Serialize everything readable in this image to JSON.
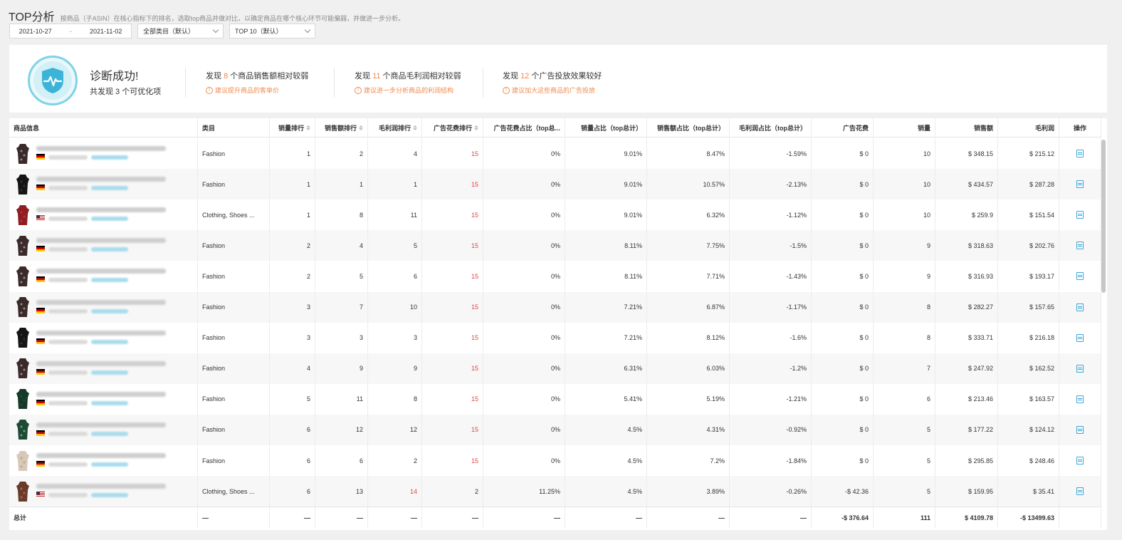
{
  "header": {
    "title": "TOP分析",
    "subtitle": "按商品（子ASIN）在核心指标下的排名，选取top商品并做对比，以确定商品在哪个核心环节可能偏弱，并做进一步分析。"
  },
  "filters": {
    "date_start": "2021-10-27",
    "date_sep": "-",
    "date_end": "2021-11-02",
    "category_select": "全部类目（默认）",
    "top_select": "TOP 10（默认）"
  },
  "diagnosis": {
    "status": "诊断成功!",
    "summary": "共发现 3 个可优化项",
    "findings": [
      {
        "pre": "发现",
        "num": "8",
        "post": "个商品销售额相对较弱",
        "tip": "建议提升商品的客单价"
      },
      {
        "pre": "发现",
        "num": "11",
        "post": "个商品毛利润相对较弱",
        "tip": "建议进一步分析商品的利润结构"
      },
      {
        "pre": "发现",
        "num": "12",
        "post": "个广告投放效果较好",
        "tip": "建议加大这些商品的广告投放"
      }
    ],
    "icons": {
      "shield": "shield-heartbeat-icon",
      "tip": "info-circle-icon"
    },
    "accent_color": "#f08a4b"
  },
  "table": {
    "columns": [
      "商品信息",
      "类目",
      "销量排行",
      "销售额排行",
      "毛利润排行",
      "广告花费排行",
      "广告花费占比（top总...",
      "销量占比（top总计）",
      "销售额占比（top总计）",
      "毛利润占比（top总计）",
      "广告花费",
      "销量",
      "销售额",
      "毛利润",
      "操作"
    ],
    "rows": [
      {
        "flag": "de",
        "img": "pattern",
        "category": "Fashion",
        "qty_rank": "1",
        "sales_rank": "2",
        "profit_rank": "4",
        "ad_rank": "15",
        "ad_share": "0%",
        "qty_share": "9.01%",
        "sales_share": "8.47%",
        "profit_share": "-1.59%",
        "ad_cost": "$ 0",
        "qty": "10",
        "sales": "$ 348.15",
        "profit": "$ 215.12"
      },
      {
        "flag": "de",
        "img": "black",
        "category": "Fashion",
        "qty_rank": "1",
        "sales_rank": "1",
        "profit_rank": "1",
        "ad_rank": "15",
        "ad_share": "0%",
        "qty_share": "9.01%",
        "sales_share": "10.57%",
        "profit_share": "-2.13%",
        "ad_cost": "$ 0",
        "qty": "10",
        "sales": "$ 434.57",
        "profit": "$ 287.28"
      },
      {
        "flag": "us",
        "img": "red",
        "category": "Clothing, Shoes ...",
        "qty_rank": "1",
        "sales_rank": "8",
        "profit_rank": "11",
        "ad_rank": "15",
        "ad_share": "0%",
        "qty_share": "9.01%",
        "sales_share": "6.32%",
        "profit_share": "-1.12%",
        "ad_cost": "$ 0",
        "qty": "10",
        "sales": "$ 259.9",
        "profit": "$ 151.54"
      },
      {
        "flag": "de",
        "img": "pattern",
        "category": "Fashion",
        "qty_rank": "2",
        "sales_rank": "4",
        "profit_rank": "5",
        "ad_rank": "15",
        "ad_share": "0%",
        "qty_share": "8.11%",
        "sales_share": "7.75%",
        "profit_share": "-1.5%",
        "ad_cost": "$ 0",
        "qty": "9",
        "sales": "$ 318.63",
        "profit": "$ 202.76"
      },
      {
        "flag": "de",
        "img": "pattern",
        "category": "Fashion",
        "qty_rank": "2",
        "sales_rank": "5",
        "profit_rank": "6",
        "ad_rank": "15",
        "ad_share": "0%",
        "qty_share": "8.11%",
        "sales_share": "7.71%",
        "profit_share": "-1.43%",
        "ad_cost": "$ 0",
        "qty": "9",
        "sales": "$ 316.93",
        "profit": "$ 193.17"
      },
      {
        "flag": "de",
        "img": "pattern",
        "category": "Fashion",
        "qty_rank": "3",
        "sales_rank": "7",
        "profit_rank": "10",
        "ad_rank": "15",
        "ad_share": "0%",
        "qty_share": "7.21%",
        "sales_share": "6.87%",
        "profit_share": "-1.17%",
        "ad_cost": "$ 0",
        "qty": "8",
        "sales": "$ 282.27",
        "profit": "$ 157.65"
      },
      {
        "flag": "de",
        "img": "black",
        "category": "Fashion",
        "qty_rank": "3",
        "sales_rank": "3",
        "profit_rank": "3",
        "ad_rank": "15",
        "ad_share": "0%",
        "qty_share": "7.21%",
        "sales_share": "8.12%",
        "profit_share": "-1.6%",
        "ad_cost": "$ 0",
        "qty": "8",
        "sales": "$ 333.71",
        "profit": "$ 216.18"
      },
      {
        "flag": "de",
        "img": "pattern",
        "category": "Fashion",
        "qty_rank": "4",
        "sales_rank": "9",
        "profit_rank": "9",
        "ad_rank": "15",
        "ad_share": "0%",
        "qty_share": "6.31%",
        "sales_share": "6.03%",
        "profit_share": "-1.2%",
        "ad_cost": "$ 0",
        "qty": "7",
        "sales": "$ 247.92",
        "profit": "$ 162.52"
      },
      {
        "flag": "de",
        "img": "green",
        "category": "Fashion",
        "qty_rank": "5",
        "sales_rank": "11",
        "profit_rank": "8",
        "ad_rank": "15",
        "ad_share": "0%",
        "qty_share": "5.41%",
        "sales_share": "5.19%",
        "profit_share": "-1.21%",
        "ad_cost": "$ 0",
        "qty": "6",
        "sales": "$ 213.46",
        "profit": "$ 163.57"
      },
      {
        "flag": "de",
        "img": "greenpattern",
        "category": "Fashion",
        "qty_rank": "6",
        "sales_rank": "12",
        "profit_rank": "12",
        "ad_rank": "15",
        "ad_share": "0%",
        "qty_share": "4.5%",
        "sales_share": "4.31%",
        "profit_share": "-0.92%",
        "ad_cost": "$ 0",
        "qty": "5",
        "sales": "$ 177.22",
        "profit": "$ 124.12"
      },
      {
        "flag": "de",
        "img": "beige",
        "category": "Fashion",
        "qty_rank": "6",
        "sales_rank": "6",
        "profit_rank": "2",
        "ad_rank": "15",
        "ad_share": "0%",
        "qty_share": "4.5%",
        "sales_share": "7.2%",
        "profit_share": "-1.84%",
        "ad_cost": "$ 0",
        "qty": "5",
        "sales": "$ 295.85",
        "profit": "$ 248.46"
      },
      {
        "flag": "us",
        "img": "brown",
        "category": "Clothing, Shoes ...",
        "qty_rank": "6",
        "sales_rank": "13",
        "profit_rank": "14",
        "ad_rank": "2",
        "ad_share": "11.25%",
        "qty_share": "4.5%",
        "sales_share": "3.89%",
        "profit_share": "-0.26%",
        "ad_cost": "-$ 42.36",
        "qty": "5",
        "sales": "$ 159.95",
        "profit": "$ 35.41",
        "profit_rank_red": true,
        "ad_rank_red": false
      }
    ],
    "total": {
      "label": "总计",
      "dash": "—",
      "ad_cost": "-$ 376.64",
      "qty": "111",
      "sales": "$ 4109.78",
      "profit": "-$ 13499.63"
    }
  },
  "colors": {
    "red": "#e54545",
    "link": "#3aa8d8",
    "alt_row": "#f7f7f7"
  }
}
